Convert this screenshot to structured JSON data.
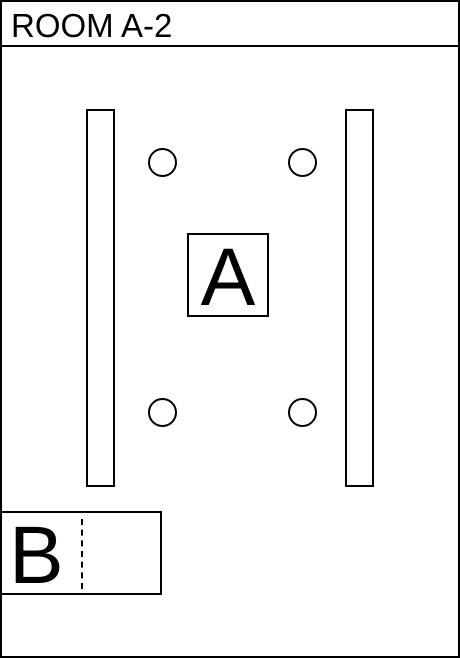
{
  "room": {
    "title": "ROOM A-2"
  },
  "items": {
    "a_label": "A",
    "b_label": "B"
  },
  "colors": {
    "stroke": "#000000",
    "background": "#ffffff"
  }
}
